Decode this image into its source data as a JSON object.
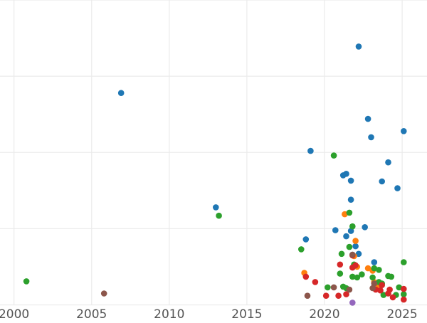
{
  "chart_data": {
    "type": "scatter",
    "title": "",
    "xlabel": "",
    "ylabel": "",
    "xlim": [
      1999.1,
      2026.6
    ],
    "ylim": [
      -0.2,
      4.0
    ],
    "grid": true,
    "xticks": [
      2000,
      2005,
      2010,
      2015,
      2020,
      2025
    ],
    "xtick_labels": [
      "2000",
      "2005",
      "2010",
      "2015",
      "2020",
      "2025"
    ],
    "yticks": [
      0,
      1,
      2,
      3,
      4
    ],
    "ytick_labels": [
      "",
      "",
      "",
      "",
      ""
    ],
    "colors": {
      "blue": "#1f77b4",
      "orange": "#ff7f0e",
      "green": "#2ca02c",
      "red": "#d62728",
      "purple": "#9467bd",
      "brown": "#8c564b"
    },
    "series": [
      {
        "name": "blue",
        "color": "#1f77b4",
        "points": [
          [
            2006.9,
            2.78
          ],
          [
            2013.0,
            1.28
          ],
          [
            2018.8,
            0.86
          ],
          [
            2019.1,
            2.02
          ],
          [
            2020.7,
            0.98
          ],
          [
            2021.2,
            1.7
          ],
          [
            2021.4,
            1.72
          ],
          [
            2021.4,
            0.9
          ],
          [
            2021.7,
            1.63
          ],
          [
            2021.7,
            1.38
          ],
          [
            2021.7,
            0.97
          ],
          [
            2022.0,
            0.77
          ],
          [
            2022.2,
            3.39
          ],
          [
            2022.2,
            0.67
          ],
          [
            2022.6,
            1.02
          ],
          [
            2022.8,
            2.44
          ],
          [
            2023.0,
            2.2
          ],
          [
            2023.2,
            0.56
          ],
          [
            2023.7,
            1.62
          ],
          [
            2024.1,
            1.87
          ],
          [
            2024.7,
            1.53
          ],
          [
            2025.1,
            2.28
          ]
        ]
      },
      {
        "name": "orange",
        "color": "#ff7f0e",
        "points": [
          [
            2018.7,
            0.42
          ],
          [
            2021.3,
            1.19
          ],
          [
            2021.9,
            0.64
          ],
          [
            2022.0,
            0.84
          ],
          [
            2022.1,
            0.5
          ],
          [
            2022.8,
            0.48
          ],
          [
            2023.1,
            0.45
          ],
          [
            2023.2,
            0.3
          ],
          [
            2023.4,
            0.24
          ]
        ]
      },
      {
        "name": "green",
        "color": "#2ca02c",
        "points": [
          [
            2000.8,
            0.31
          ],
          [
            2013.2,
            1.17
          ],
          [
            2018.5,
            0.73
          ],
          [
            2020.2,
            0.23
          ],
          [
            2020.6,
            1.96
          ],
          [
            2021.0,
            0.41
          ],
          [
            2021.1,
            0.67
          ],
          [
            2021.2,
            0.24
          ],
          [
            2021.4,
            0.22
          ],
          [
            2021.6,
            0.76
          ],
          [
            2021.6,
            1.21
          ],
          [
            2021.8,
            1.03
          ],
          [
            2021.8,
            0.37
          ],
          [
            2021.9,
            0.53
          ],
          [
            2022.1,
            0.36
          ],
          [
            2022.4,
            0.4
          ],
          [
            2023.1,
            0.36
          ],
          [
            2023.2,
            0.48
          ],
          [
            2023.5,
            0.46
          ],
          [
            2023.5,
            0.3
          ],
          [
            2023.7,
            0.28
          ],
          [
            2023.8,
            0.13
          ],
          [
            2024.1,
            0.38
          ],
          [
            2024.3,
            0.37
          ],
          [
            2024.6,
            0.13
          ],
          [
            2024.8,
            0.23
          ],
          [
            2025.1,
            0.56
          ],
          [
            2025.1,
            0.14
          ]
        ]
      },
      {
        "name": "red",
        "color": "#d62728",
        "points": [
          [
            2018.8,
            0.37
          ],
          [
            2019.4,
            0.3
          ],
          [
            2020.1,
            0.12
          ],
          [
            2020.9,
            0.12
          ],
          [
            2021.0,
            0.53
          ],
          [
            2021.4,
            0.14
          ],
          [
            2021.8,
            0.49
          ],
          [
            2021.8,
            0.65
          ],
          [
            2022.0,
            0.52
          ],
          [
            2023.3,
            0.2
          ],
          [
            2023.6,
            0.19
          ],
          [
            2023.7,
            0.26
          ],
          [
            2024.1,
            0.15
          ],
          [
            2024.2,
            0.2
          ],
          [
            2024.4,
            0.1
          ],
          [
            2025.1,
            0.07
          ],
          [
            2025.1,
            0.21
          ]
        ]
      },
      {
        "name": "purple",
        "color": "#9467bd",
        "points": [
          [
            2021.8,
            0.03
          ]
        ]
      },
      {
        "name": "brown",
        "color": "#8c564b",
        "points": [
          [
            2005.8,
            0.15
          ],
          [
            2018.9,
            0.12
          ],
          [
            2020.6,
            0.23
          ],
          [
            2021.6,
            0.2
          ],
          [
            2021.8,
            0.66
          ],
          [
            2023.1,
            0.22
          ],
          [
            2023.2,
            0.28
          ]
        ]
      }
    ]
  }
}
